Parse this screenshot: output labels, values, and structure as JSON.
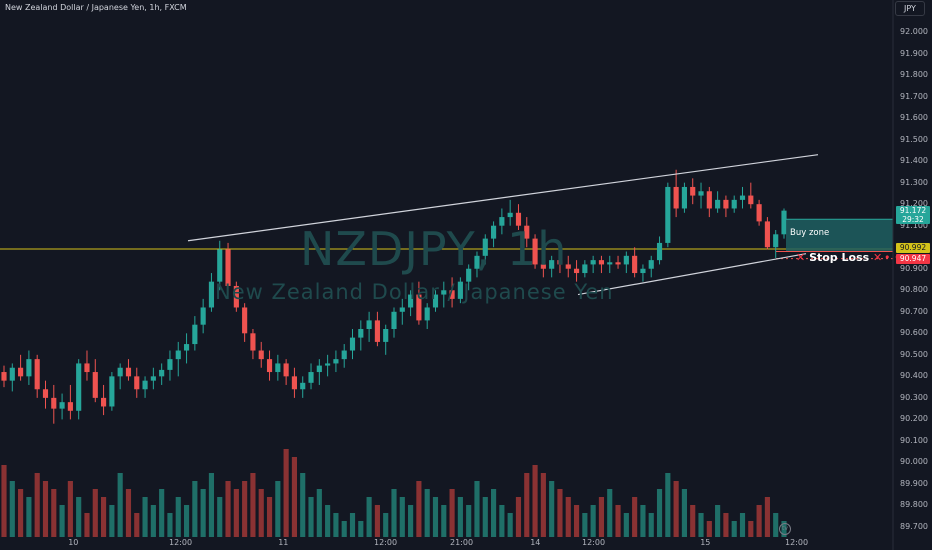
{
  "header": {
    "symbol_title": "New Zealand Dollar / Japanese Yen, 1h, FXCM",
    "currency": "JPY"
  },
  "watermark": {
    "ticker": "NZDJPY, 1h",
    "name": "New Zealand Dollar / Japanese Yen"
  },
  "annotations": {
    "buy_zone": "Buy zone",
    "stop_loss": "Stop Loss",
    "stop_loss_icon": "✕",
    "dots": "• •"
  },
  "price_tags": {
    "last_price": "91.172",
    "countdown": "29:32",
    "level": "90.992",
    "stop": "90.947"
  },
  "colors": {
    "background": "#131722",
    "up": "#26a69a",
    "down": "#ef5350",
    "vol_up": "#1f6f68",
    "vol_down": "#8a3233",
    "level_line": "#d4c21a",
    "buy_zone_fill": "#1e5f60",
    "stop_tag": "#f23645",
    "last_tag": "#26a69a"
  },
  "chart_data": {
    "type": "candlestick",
    "symbol": "NZDJPY",
    "timeframe": "1h",
    "ylim": [
      89.7,
      92.0
    ],
    "y_ticks": [
      "92.000",
      "91.900",
      "91.800",
      "91.700",
      "91.600",
      "91.500",
      "91.400",
      "91.300",
      "91.200",
      "91.100",
      "91.000",
      "90.900",
      "90.800",
      "90.700",
      "90.600",
      "90.500",
      "90.400",
      "90.300",
      "90.200",
      "90.100",
      "90.000",
      "89.900",
      "89.800",
      "89.700"
    ],
    "x_ticks": [
      "10",
      "12:00",
      "11",
      "12:00",
      "21:00",
      "14",
      "12:00",
      "15",
      "12:00"
    ],
    "horizontal_level": 90.992,
    "last_price": 91.172,
    "stop_loss_price": 90.947,
    "buy_zone": [
      91.13,
      90.98
    ],
    "upper_trendline": [
      [
        0,
        91.03
      ],
      [
        1,
        91.43
      ]
    ],
    "lower_trendline": [
      [
        0,
        90.78
      ],
      [
        1,
        90.97
      ]
    ],
    "candles": [
      [
        90.42,
        90.45,
        90.35,
        90.38
      ],
      [
        90.38,
        90.46,
        90.33,
        90.44
      ],
      [
        90.44,
        90.5,
        90.38,
        90.4
      ],
      [
        90.4,
        90.52,
        90.36,
        90.48
      ],
      [
        90.48,
        90.5,
        90.3,
        90.34
      ],
      [
        90.34,
        90.38,
        90.25,
        90.3
      ],
      [
        90.3,
        90.36,
        90.18,
        90.25
      ],
      [
        90.25,
        90.32,
        90.2,
        90.28
      ],
      [
        90.28,
        90.36,
        90.2,
        90.24
      ],
      [
        90.24,
        90.48,
        90.2,
        90.46
      ],
      [
        90.46,
        90.52,
        90.38,
        90.42
      ],
      [
        90.42,
        90.48,
        90.28,
        90.3
      ],
      [
        90.3,
        90.36,
        90.22,
        90.26
      ],
      [
        90.26,
        90.42,
        90.24,
        90.4
      ],
      [
        90.4,
        90.46,
        90.34,
        90.44
      ],
      [
        90.44,
        90.48,
        90.38,
        90.4
      ],
      [
        90.4,
        90.44,
        90.3,
        90.34
      ],
      [
        90.34,
        90.4,
        90.3,
        90.38
      ],
      [
        90.38,
        90.44,
        90.34,
        90.4
      ],
      [
        90.4,
        90.46,
        90.36,
        90.43
      ],
      [
        90.43,
        90.52,
        90.38,
        90.48
      ],
      [
        90.48,
        90.56,
        90.4,
        90.52
      ],
      [
        90.52,
        90.6,
        90.46,
        90.55
      ],
      [
        90.55,
        90.68,
        90.52,
        90.64
      ],
      [
        90.64,
        90.76,
        90.6,
        90.72
      ],
      [
        90.72,
        90.88,
        90.7,
        90.84
      ],
      [
        90.84,
        91.03,
        90.8,
        90.99
      ],
      [
        90.99,
        91.02,
        90.78,
        90.82
      ],
      [
        90.82,
        90.84,
        90.7,
        90.72
      ],
      [
        90.72,
        90.74,
        90.56,
        90.6
      ],
      [
        90.6,
        90.62,
        90.48,
        90.52
      ],
      [
        90.52,
        90.56,
        90.44,
        90.48
      ],
      [
        90.48,
        90.52,
        90.38,
        90.42
      ],
      [
        90.42,
        90.5,
        90.38,
        90.46
      ],
      [
        90.46,
        90.48,
        90.36,
        90.4
      ],
      [
        90.4,
        90.44,
        90.3,
        90.34
      ],
      [
        90.34,
        90.4,
        90.3,
        90.37
      ],
      [
        90.37,
        90.46,
        90.34,
        90.42
      ],
      [
        90.42,
        90.48,
        90.36,
        90.45
      ],
      [
        90.45,
        90.5,
        90.4,
        90.46
      ],
      [
        90.46,
        90.52,
        90.42,
        90.48
      ],
      [
        90.48,
        90.55,
        90.44,
        90.52
      ],
      [
        90.52,
        90.62,
        90.48,
        90.58
      ],
      [
        90.58,
        90.66,
        90.52,
        90.62
      ],
      [
        90.62,
        90.7,
        90.56,
        90.66
      ],
      [
        90.66,
        90.7,
        90.54,
        90.56
      ],
      [
        90.56,
        90.64,
        90.5,
        90.62
      ],
      [
        90.62,
        90.72,
        90.58,
        90.7
      ],
      [
        90.7,
        90.76,
        90.64,
        90.72
      ],
      [
        90.72,
        90.8,
        90.68,
        90.78
      ],
      [
        90.78,
        90.84,
        90.64,
        90.66
      ],
      [
        90.66,
        90.74,
        90.62,
        90.72
      ],
      [
        90.72,
        90.8,
        90.7,
        90.78
      ],
      [
        90.78,
        90.84,
        90.72,
        90.8
      ],
      [
        90.8,
        90.86,
        90.72,
        90.76
      ],
      [
        90.76,
        90.86,
        90.74,
        90.84
      ],
      [
        90.84,
        90.92,
        90.8,
        90.9
      ],
      [
        90.9,
        90.98,
        90.86,
        90.96
      ],
      [
        90.96,
        91.06,
        90.92,
        91.04
      ],
      [
        91.04,
        91.12,
        91.0,
        91.1
      ],
      [
        91.1,
        91.18,
        91.06,
        91.14
      ],
      [
        91.14,
        91.22,
        91.1,
        91.16
      ],
      [
        91.16,
        91.2,
        91.08,
        91.1
      ],
      [
        91.1,
        91.14,
        91.0,
        91.04
      ],
      [
        91.04,
        91.06,
        90.9,
        90.92
      ],
      [
        90.92,
        90.96,
        90.86,
        90.9
      ],
      [
        90.9,
        90.96,
        90.86,
        90.94
      ],
      [
        90.94,
        90.98,
        90.88,
        90.92
      ],
      [
        90.92,
        90.96,
        90.86,
        90.9
      ],
      [
        90.9,
        90.94,
        90.84,
        90.88
      ],
      [
        90.88,
        90.94,
        90.86,
        90.92
      ],
      [
        90.92,
        90.96,
        90.88,
        90.94
      ],
      [
        90.94,
        90.96,
        90.88,
        90.92
      ],
      [
        90.92,
        90.96,
        90.88,
        90.93
      ],
      [
        90.93,
        90.96,
        90.9,
        90.92
      ],
      [
        90.92,
        90.98,
        90.88,
        90.96
      ],
      [
        90.96,
        91.0,
        90.86,
        90.88
      ],
      [
        90.88,
        90.92,
        90.84,
        90.9
      ],
      [
        90.9,
        90.96,
        90.86,
        90.94
      ],
      [
        90.94,
        91.05,
        90.92,
        91.02
      ],
      [
        91.02,
        91.3,
        91.0,
        91.28
      ],
      [
        91.28,
        91.36,
        91.14,
        91.18
      ],
      [
        91.18,
        91.3,
        91.16,
        91.28
      ],
      [
        91.28,
        91.32,
        91.2,
        91.24
      ],
      [
        91.24,
        91.3,
        91.18,
        91.26
      ],
      [
        91.26,
        91.28,
        91.14,
        91.18
      ],
      [
        91.18,
        91.26,
        91.16,
        91.22
      ],
      [
        91.22,
        91.24,
        91.14,
        91.18
      ],
      [
        91.18,
        91.24,
        91.16,
        91.22
      ],
      [
        91.22,
        91.28,
        91.18,
        91.24
      ],
      [
        91.24,
        91.3,
        91.18,
        91.2
      ],
      [
        91.2,
        91.22,
        91.1,
        91.12
      ],
      [
        91.12,
        91.14,
        90.99,
        91.0
      ],
      [
        91.0,
        91.08,
        90.95,
        91.06
      ],
      [
        91.06,
        91.18,
        91.04,
        91.17
      ]
    ],
    "volume": [
      9,
      7,
      6,
      5,
      8,
      7,
      6,
      4,
      7,
      5,
      3,
      6,
      5,
      4,
      8,
      6,
      3,
      5,
      4,
      6,
      3,
      5,
      4,
      7,
      6,
      8,
      5,
      7,
      6,
      7,
      8,
      6,
      5,
      7,
      11,
      10,
      8,
      5,
      6,
      4,
      3,
      2,
      3,
      2,
      5,
      4,
      3,
      6,
      5,
      4,
      7,
      6,
      5,
      4,
      6,
      5,
      4,
      7,
      5,
      6,
      4,
      3,
      5,
      8,
      9,
      8,
      7,
      6,
      5,
      4,
      3,
      4,
      5,
      6,
      4,
      3,
      5,
      4,
      3,
      6,
      8,
      7,
      6,
      4,
      3,
      2,
      4,
      3,
      2,
      3,
      2,
      4,
      5,
      3,
      2
    ]
  }
}
